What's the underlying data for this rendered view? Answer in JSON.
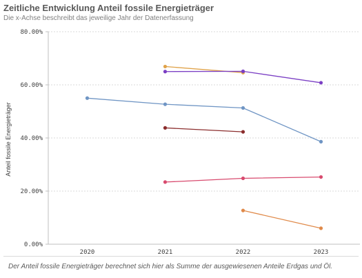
{
  "header": {
    "title": "Zeitliche Entwicklung Anteil fossile Energieträger",
    "subtitle": "Die x-Achse beschreibt das jeweilige Jahr der Datenerfassung"
  },
  "footer": {
    "note": "Der Anteil fossile Energieträger berechnet sich hier als Summe der ausgewiesenen Anteile Erdgas und Öl."
  },
  "chart_data": {
    "type": "line",
    "title": "Zeitliche Entwicklung Anteil fossile Energieträger",
    "subtitle": "Die x-Achse beschreibt das jeweilige Jahr der Datenerfassung",
    "xlabel": "",
    "ylabel": "Anteil fossile Energieträger",
    "categories": [
      "2020",
      "2021",
      "2022",
      "2023"
    ],
    "ylim": [
      0,
      80
    ],
    "yticks": [
      0,
      20,
      40,
      60,
      80
    ],
    "ytick_labels": [
      "0.00%",
      "20.00%",
      "40.00%",
      "60.00%",
      "80.00%"
    ],
    "grid": "horizontal",
    "series": [
      {
        "color": "#e0a34a",
        "values": [
          null,
          66.9,
          64.6,
          null
        ]
      },
      {
        "color": "#7b3fc4",
        "values": [
          null,
          65.0,
          65.1,
          60.8
        ]
      },
      {
        "color": "#6f95c4",
        "values": [
          55.0,
          52.7,
          51.3,
          38.6
        ]
      },
      {
        "color": "#8b2d2d",
        "values": [
          null,
          43.8,
          42.3,
          null
        ]
      },
      {
        "color": "#d84a6e",
        "values": [
          null,
          23.4,
          24.8,
          25.3
        ]
      },
      {
        "color": "#e08a4a",
        "values": [
          null,
          null,
          12.7,
          6.0
        ]
      }
    ]
  }
}
